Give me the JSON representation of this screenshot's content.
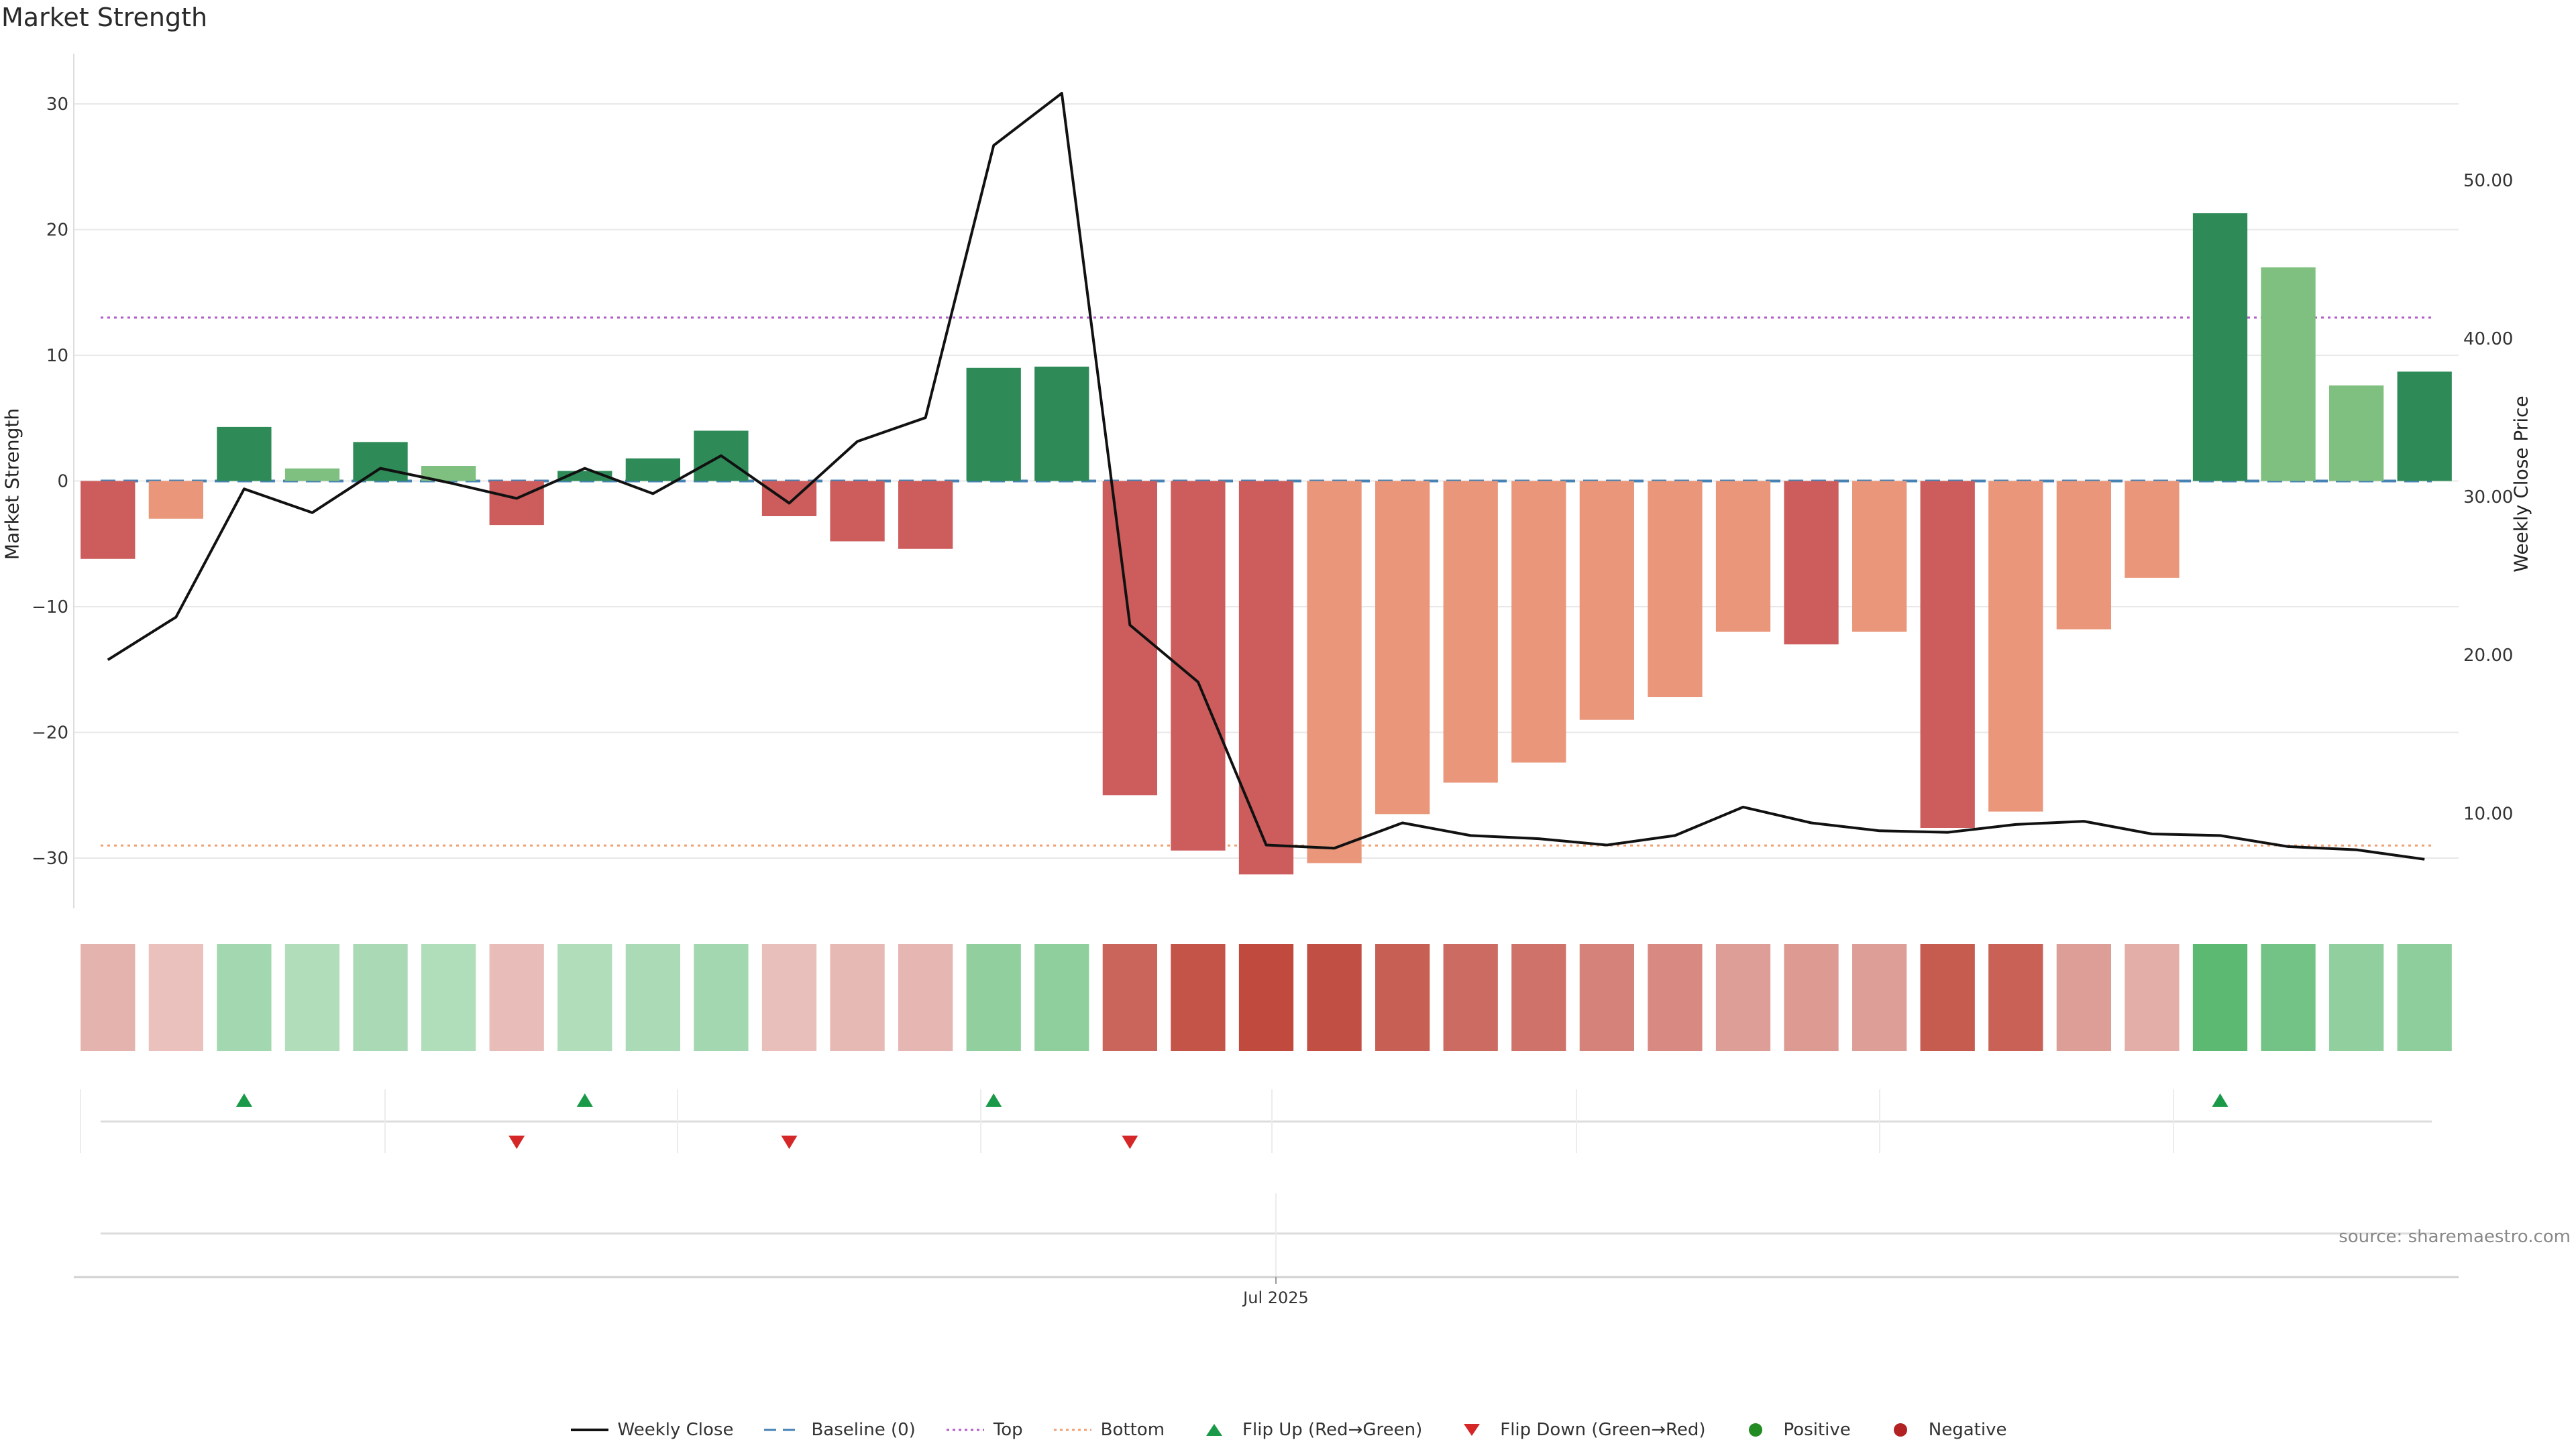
{
  "title": "Market Strength",
  "source": "source: sharemaestro.com",
  "colors": {
    "dark_green": "#2e8b57",
    "light_green": "#7fbf7f",
    "dark_red": "#cd5c5c",
    "light_red": "#e9967a",
    "price_line": "#111111",
    "baseline": "#4682b4",
    "top": "#b05cc8",
    "bottom": "#f0a070",
    "flip_up": "#1a9a48",
    "flip_down": "#d62728",
    "positive": "#228b22",
    "negative": "#b22222"
  },
  "legend": [
    {
      "label": "Weekly Close",
      "icon": "solid-line"
    },
    {
      "label": "Baseline (0)",
      "icon": "dashed-line"
    },
    {
      "label": "Top",
      "icon": "dotted-line"
    },
    {
      "label": "Bottom",
      "icon": "dotted-line"
    },
    {
      "label": "Flip Up (Red→Green)",
      "icon": "triangle-up"
    },
    {
      "label": "Flip Down (Green→Red)",
      "icon": "triangle-down"
    },
    {
      "label": "Positive",
      "icon": "dot"
    },
    {
      "label": "Negative",
      "icon": "dot"
    }
  ],
  "chart_data": {
    "type": "bar",
    "ylabel": "Market Strength",
    "ylabel_right": "Weekly Close Price",
    "ylim": [
      -34,
      34
    ],
    "ylim_right": [
      4,
      58
    ],
    "yticks": [
      30,
      20,
      10,
      0,
      -10,
      -20,
      -30
    ],
    "yticks_right": [
      "50.00",
      "40.00",
      "30.00",
      "20.00",
      "10.00"
    ],
    "x_tick_label": "Jul 2025",
    "top_level": 13,
    "bottom_level": -29,
    "grid": true,
    "legend_position": "bottom",
    "series": [
      {
        "name": "Market Strength",
        "values": [
          -6.2,
          -3.0,
          4.3,
          1.0,
          3.1,
          1.2,
          -3.5,
          0.8,
          1.8,
          4.0,
          -2.8,
          -4.8,
          -5.4,
          9.0,
          9.1,
          -25.0,
          -29.4,
          -31.3,
          -30.4,
          -26.5,
          -24.0,
          -22.4,
          -19.0,
          -17.2,
          -12.0,
          -13.0,
          -12.0,
          -27.6,
          -26.3,
          -11.8,
          -7.7,
          21.3,
          17.0,
          7.6,
          8.7
        ]
      },
      {
        "name": "Weekly Close",
        "values": [
          19.7,
          22.4,
          30.5,
          29.0,
          31.8,
          30.9,
          29.9,
          31.8,
          30.2,
          32.6,
          29.6,
          33.5,
          35.0,
          52.2,
          55.5,
          21.9,
          18.3,
          8.0,
          7.8,
          9.4,
          8.6,
          8.4,
          8.0,
          8.6,
          10.4,
          9.4,
          8.9,
          8.8,
          9.3,
          9.5,
          8.7,
          8.6,
          7.9,
          7.7,
          7.1
        ]
      }
    ],
    "bar_style": [
      "dark-red",
      "light-red",
      "dark-green",
      "light-green",
      "dark-green",
      "light-green",
      "dark-red",
      "dark-green",
      "dark-green",
      "dark-green",
      "dark-red",
      "dark-red",
      "dark-red",
      "dark-green",
      "dark-green",
      "dark-red",
      "dark-red",
      "dark-red",
      "light-red",
      "light-red",
      "light-red",
      "light-red",
      "light-red",
      "light-red",
      "light-red",
      "dark-red",
      "light-red",
      "dark-red",
      "light-red",
      "light-red",
      "light-red",
      "dark-green",
      "light-green",
      "light-green",
      "dark-green"
    ],
    "heat_strip": [
      -0.26,
      -0.17,
      0.32,
      0.22,
      0.27,
      0.23,
      -0.2,
      0.22,
      0.26,
      0.32,
      -0.18,
      -0.22,
      -0.24,
      0.44,
      0.45,
      -0.78,
      -0.9,
      -0.96,
      -0.93,
      -0.82,
      -0.74,
      -0.69,
      -0.59,
      -0.54,
      -0.4,
      -0.43,
      -0.4,
      -0.85,
      -0.81,
      -0.4,
      -0.3,
      0.8,
      0.64,
      0.44,
      0.46
    ],
    "flip_up_indices": [
      2,
      7,
      13,
      31
    ],
    "flip_down_indices": [
      6,
      10,
      15
    ]
  }
}
